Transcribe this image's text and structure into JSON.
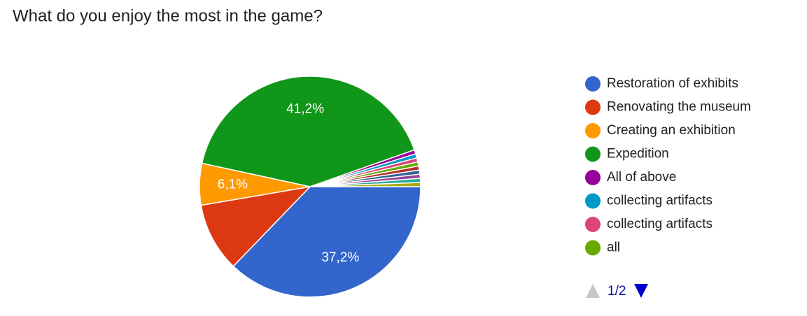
{
  "chart_data": {
    "type": "pie",
    "title": "What do you enjoy the most in the game?",
    "categories": [
      "Restoration of exhibits",
      "Renovating the museum",
      "Creating an exhibition",
      "Expedition",
      "All of above",
      "collecting artifacts",
      "collecting artifacts",
      "all",
      null,
      null,
      null,
      null,
      null
    ],
    "values": [
      37.2,
      10.1,
      6.1,
      41.2,
      0.6,
      0.6,
      0.6,
      0.6,
      0.6,
      0.6,
      0.6,
      0.6,
      0.6
    ],
    "value_labels": [
      "37,2%",
      null,
      "6,1%",
      "41,2%",
      null,
      null,
      null,
      null,
      null,
      null,
      null,
      null,
      null
    ],
    "colors": [
      "#3366cc",
      "#dc3912",
      "#ff9900",
      "#109618",
      "#990099",
      "#0099c6",
      "#dd4477",
      "#66aa00",
      "#b82e2e",
      "#316395",
      "#994499",
      "#22aa99",
      "#aaaa11"
    ],
    "legend_page": "1/2"
  }
}
